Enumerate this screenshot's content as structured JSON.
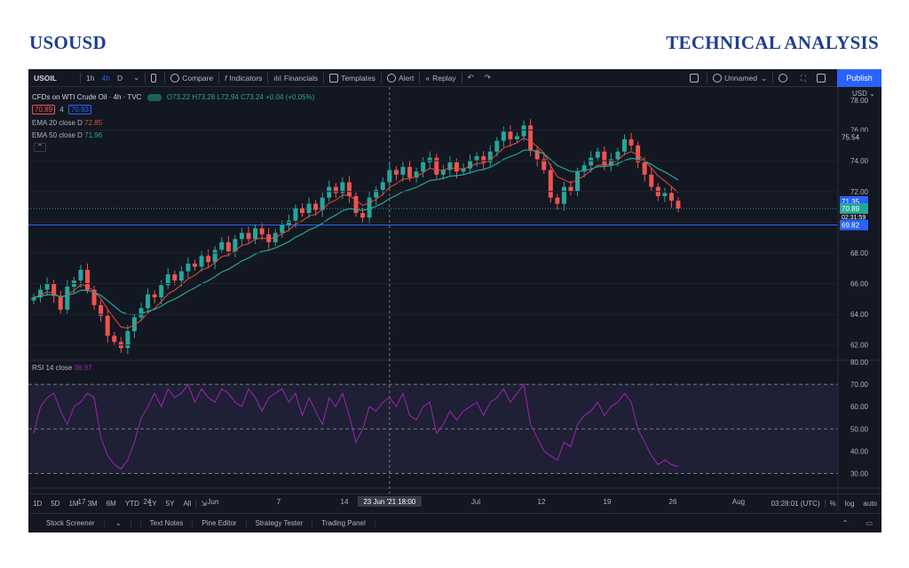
{
  "header": {
    "left_title": "USOUSD",
    "right_title": "TECHNICAL ANALYSIS"
  },
  "toolbar": {
    "symbol": "USOIL",
    "intervals": [
      "1h",
      "4h",
      "D"
    ],
    "compare": "Compare",
    "indicators": "Indicators",
    "financials": "Financials",
    "templates": "Templates",
    "alert": "Alert",
    "replay": "Replay",
    "layout_name": "Unnamed",
    "publish": "Publish"
  },
  "legend": {
    "instrument": "CFDs on WTI Crude Oil · 4h · TVC",
    "ohlc": "O73.22 H73.28 L72.94 C73.24 +0.04 (+0.05%)",
    "bid": "70.89",
    "spread": "4",
    "ask": "70.93",
    "ema20": "EMA 20 close D",
    "ema20_value": "72.85",
    "ema50": "EMA 50 close D",
    "ema50_value": "71.96",
    "rsi": "RSI 14 close",
    "rsi_value": "36.97"
  },
  "price_scale": {
    "currency": "USD",
    "top_label": "78.00",
    "badge_high": "75.54",
    "badge_71": "71.35",
    "badge_last": "70.89",
    "badge_countdown": "02:31:59",
    "badge_support": "69.82"
  },
  "chart_data": [
    {
      "type": "candlestick",
      "title": "CFDs on WTI Crude Oil · 4h · TVC",
      "y_ticks": [
        "76.00",
        "74.00",
        "72.00",
        "70.00",
        "68.00",
        "66.00",
        "64.00",
        "62.00"
      ],
      "ylim": [
        61,
        78
      ],
      "x_ticks": [
        "17",
        "24",
        "Jun",
        "7",
        "14",
        "21",
        "Jul",
        "12",
        "19",
        "26",
        "Aug"
      ],
      "crosshair_label": "23 Jun '21  18:00",
      "support_level": 69.82,
      "last_price": 70.89,
      "series": [
        {
          "name": "EMA 20 close D",
          "color": "#e74c3c"
        },
        {
          "name": "EMA 50 close D",
          "color": "#26a69a"
        }
      ],
      "close": [
        65.1,
        65.6,
        66.0,
        65.2,
        64.3,
        65.8,
        66.2,
        66.9,
        65.6,
        64.6,
        63.9,
        62.6,
        62.2,
        61.8,
        62.9,
        63.8,
        64.4,
        65.3,
        65.1,
        65.9,
        66.6,
        66.2,
        66.8,
        67.3,
        67.1,
        67.8,
        67.4,
        68.2,
        68.7,
        68.1,
        68.9,
        69.3,
        68.9,
        69.6,
        69.2,
        68.7,
        69.3,
        69.8,
        70.1,
        70.9,
        70.6,
        71.2,
        70.8,
        71.6,
        72.3,
        71.9,
        72.6,
        71.7,
        70.6,
        70.3,
        71.6,
        72.1,
        72.6,
        73.4,
        73.1,
        73.6,
        72.9,
        73.3,
        73.9,
        74.2,
        73.1,
        73.4,
        73.9,
        73.3,
        73.5,
        74.0,
        74.3,
        73.9,
        74.6,
        75.3,
        75.9,
        75.4,
        75.6,
        76.3,
        74.7,
        74.1,
        73.4,
        71.6,
        71.2,
        72.3,
        72.0,
        73.3,
        73.7,
        74.2,
        74.6,
        73.7,
        74.1,
        74.6,
        75.4,
        75.0,
        73.9,
        73.1,
        72.3,
        71.7,
        71.9,
        71.4,
        70.9
      ]
    },
    {
      "type": "line",
      "title": "RSI 14 close",
      "y_ticks": [
        "80.00",
        "70.00",
        "60.00",
        "50.00",
        "40.00",
        "30.00"
      ],
      "ylim": [
        25,
        80
      ],
      "bands": [
        70,
        50,
        30
      ],
      "values": [
        48,
        60,
        64,
        66,
        58,
        52,
        60,
        62,
        66,
        64,
        46,
        38,
        34,
        32,
        36,
        44,
        55,
        60,
        66,
        60,
        68,
        64,
        66,
        70,
        62,
        68,
        64,
        62,
        68,
        66,
        62,
        60,
        68,
        64,
        58,
        64,
        66,
        68,
        62,
        66,
        56,
        64,
        58,
        52,
        64,
        60,
        66,
        56,
        44,
        50,
        60,
        58,
        62,
        64,
        60,
        66,
        56,
        54,
        60,
        62,
        48,
        52,
        58,
        54,
        58,
        60,
        62,
        56,
        62,
        64,
        68,
        62,
        66,
        70,
        52,
        46,
        40,
        38,
        36,
        44,
        42,
        52,
        56,
        58,
        62,
        56,
        60,
        62,
        66,
        62,
        50,
        44,
        38,
        34,
        36,
        34,
        33
      ]
    }
  ],
  "footer": {
    "ranges": [
      "1D",
      "5D",
      "1M",
      "3M",
      "6M",
      "YTD",
      "1Y",
      "5Y",
      "All"
    ],
    "clock": "03:28:01 (UTC)",
    "percent": "%",
    "log": "log",
    "auto": "auto",
    "tabs": [
      "Stock Screener",
      "Text Notes",
      "Pine Editor",
      "Strategy Tester",
      "Trading Panel"
    ]
  }
}
